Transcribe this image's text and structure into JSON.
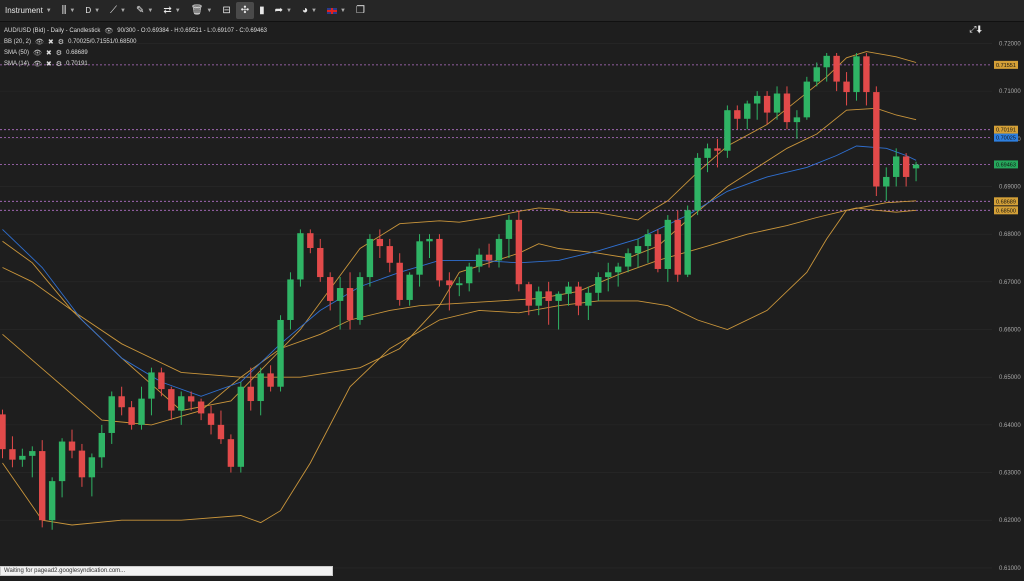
{
  "toolbar": {
    "instrument_label": "Instrument",
    "timeframe_label": "D"
  },
  "legend": {
    "main": "AUD/USD (Bid) - Daily - Candlestick",
    "main_values": "90/300 - O:0.69384 - H:0.69521 - L:0.69107 - C:0.69463",
    "bb_name": "BB (20, 2)",
    "bb_values": "0.70025/0.71551/0.68500",
    "sma50_name": "SMA (50)",
    "sma50_value": "0.68689",
    "sma14_name": "SMA (14)",
    "sma14_value": "0.70191"
  },
  "status_text": "Waiting for pagead2.googlesyndication.com...",
  "chart_data": {
    "type": "candlestick",
    "instrument": "AUD/USD",
    "timeframe": "Daily",
    "ylim": [
      0.6083,
      0.7245
    ],
    "yticks": [
      "0.72000",
      "0.71000",
      "0.70000",
      "0.69000",
      "0.68000",
      "0.67000",
      "0.66000",
      "0.65000",
      "0.64000",
      "0.63000",
      "0.62000",
      "0.61000"
    ],
    "price_labels": [
      {
        "text": "0.71551",
        "color": "#d4a037"
      },
      {
        "text": "0.70191",
        "color": "#d4a037"
      },
      {
        "text": "0.70025",
        "color": "#2d7fe0"
      },
      {
        "text": "0.69463",
        "color": "#26a85c"
      },
      {
        "text": "0.68689",
        "color": "#d4a037"
      },
      {
        "text": "0.68500",
        "color": "#d4a037"
      }
    ],
    "dashed_levels": [
      0.71551,
      0.70191,
      0.70025,
      0.69463,
      0.68689,
      0.685
    ],
    "candles": [
      [
        0.6422,
        0.6432,
        0.633,
        0.6349
      ],
      [
        0.6349,
        0.6376,
        0.6311,
        0.6327
      ],
      [
        0.6327,
        0.635,
        0.6312,
        0.6335
      ],
      [
        0.6335,
        0.6355,
        0.629,
        0.6345
      ],
      [
        0.6345,
        0.6368,
        0.6185,
        0.62
      ],
      [
        0.62,
        0.629,
        0.618,
        0.6282
      ],
      [
        0.6282,
        0.6372,
        0.6248,
        0.6365
      ],
      [
        0.6365,
        0.639,
        0.633,
        0.6346
      ],
      [
        0.6346,
        0.636,
        0.627,
        0.629
      ],
      [
        0.629,
        0.634,
        0.625,
        0.6332
      ],
      [
        0.6332,
        0.64,
        0.631,
        0.6383
      ],
      [
        0.6383,
        0.647,
        0.636,
        0.646
      ],
      [
        0.646,
        0.648,
        0.642,
        0.6437
      ],
      [
        0.6437,
        0.645,
        0.639,
        0.64
      ],
      [
        0.64,
        0.648,
        0.639,
        0.6455
      ],
      [
        0.6455,
        0.652,
        0.642,
        0.651
      ],
      [
        0.651,
        0.652,
        0.646,
        0.6475
      ],
      [
        0.6475,
        0.648,
        0.641,
        0.643
      ],
      [
        0.643,
        0.647,
        0.64,
        0.646
      ],
      [
        0.646,
        0.647,
        0.643,
        0.6449
      ],
      [
        0.6449,
        0.6455,
        0.641,
        0.6424
      ],
      [
        0.6424,
        0.644,
        0.638,
        0.64
      ],
      [
        0.64,
        0.643,
        0.636,
        0.637
      ],
      [
        0.637,
        0.638,
        0.63,
        0.6312
      ],
      [
        0.6312,
        0.649,
        0.63,
        0.648
      ],
      [
        0.648,
        0.652,
        0.643,
        0.645
      ],
      [
        0.645,
        0.652,
        0.642,
        0.6508
      ],
      [
        0.6508,
        0.6525,
        0.647,
        0.648
      ],
      [
        0.648,
        0.663,
        0.647,
        0.662
      ],
      [
        0.662,
        0.672,
        0.66,
        0.6705
      ],
      [
        0.6705,
        0.681,
        0.669,
        0.6802
      ],
      [
        0.6802,
        0.681,
        0.676,
        0.6771
      ],
      [
        0.6771,
        0.679,
        0.67,
        0.671
      ],
      [
        0.671,
        0.672,
        0.664,
        0.666
      ],
      [
        0.666,
        0.671,
        0.66,
        0.6687
      ],
      [
        0.6687,
        0.672,
        0.66,
        0.662
      ],
      [
        0.662,
        0.672,
        0.661,
        0.671
      ],
      [
        0.671,
        0.68,
        0.669,
        0.679
      ],
      [
        0.679,
        0.681,
        0.675,
        0.6775
      ],
      [
        0.6775,
        0.679,
        0.672,
        0.674
      ],
      [
        0.674,
        0.676,
        0.665,
        0.6662
      ],
      [
        0.6662,
        0.672,
        0.665,
        0.6715
      ],
      [
        0.6715,
        0.68,
        0.669,
        0.6785
      ],
      [
        0.6785,
        0.68,
        0.675,
        0.679
      ],
      [
        0.679,
        0.68,
        0.669,
        0.6703
      ],
      [
        0.6703,
        0.672,
        0.664,
        0.6693
      ],
      [
        0.6693,
        0.671,
        0.667,
        0.6697
      ],
      [
        0.6697,
        0.674,
        0.668,
        0.6732
      ],
      [
        0.6732,
        0.677,
        0.672,
        0.6757
      ],
      [
        0.6757,
        0.678,
        0.673,
        0.6745
      ],
      [
        0.6745,
        0.68,
        0.673,
        0.679
      ],
      [
        0.679,
        0.684,
        0.675,
        0.683
      ],
      [
        0.683,
        0.685,
        0.668,
        0.6695
      ],
      [
        0.6695,
        0.67,
        0.663,
        0.665
      ],
      [
        0.665,
        0.669,
        0.663,
        0.668
      ],
      [
        0.668,
        0.67,
        0.661,
        0.666
      ],
      [
        0.666,
        0.668,
        0.66,
        0.6675
      ],
      [
        0.6675,
        0.67,
        0.665,
        0.669
      ],
      [
        0.669,
        0.67,
        0.663,
        0.665
      ],
      [
        0.665,
        0.669,
        0.662,
        0.6677
      ],
      [
        0.6677,
        0.672,
        0.666,
        0.671
      ],
      [
        0.671,
        0.674,
        0.668,
        0.672
      ],
      [
        0.672,
        0.674,
        0.669,
        0.6732
      ],
      [
        0.6732,
        0.677,
        0.672,
        0.676
      ],
      [
        0.676,
        0.679,
        0.673,
        0.6775
      ],
      [
        0.6775,
        0.681,
        0.674,
        0.68
      ],
      [
        0.68,
        0.681,
        0.672,
        0.6727
      ],
      [
        0.6727,
        0.684,
        0.67,
        0.683
      ],
      [
        0.683,
        0.685,
        0.67,
        0.6715
      ],
      [
        0.6715,
        0.686,
        0.671,
        0.685
      ],
      [
        0.685,
        0.697,
        0.684,
        0.696
      ],
      [
        0.696,
        0.699,
        0.693,
        0.698
      ],
      [
        0.698,
        0.7,
        0.694,
        0.6975
      ],
      [
        0.6975,
        0.707,
        0.696,
        0.706
      ],
      [
        0.706,
        0.707,
        0.702,
        0.7042
      ],
      [
        0.7042,
        0.708,
        0.702,
        0.7074
      ],
      [
        0.7074,
        0.71,
        0.704,
        0.709
      ],
      [
        0.709,
        0.71,
        0.703,
        0.7055
      ],
      [
        0.7055,
        0.711,
        0.704,
        0.7095
      ],
      [
        0.7095,
        0.711,
        0.702,
        0.7035
      ],
      [
        0.7035,
        0.706,
        0.7,
        0.7045
      ],
      [
        0.7045,
        0.713,
        0.704,
        0.712
      ],
      [
        0.712,
        0.716,
        0.711,
        0.715
      ],
      [
        0.715,
        0.718,
        0.712,
        0.7174
      ],
      [
        0.7174,
        0.718,
        0.71,
        0.712
      ],
      [
        0.712,
        0.714,
        0.707,
        0.7098
      ],
      [
        0.7098,
        0.718,
        0.708,
        0.7173
      ],
      [
        0.7173,
        0.718,
        0.707,
        0.7098
      ],
      [
        0.7098,
        0.711,
        0.688,
        0.69
      ],
      [
        0.69,
        0.694,
        0.687,
        0.692
      ],
      [
        0.692,
        0.698,
        0.69,
        0.6963
      ],
      [
        0.6963,
        0.697,
        0.69,
        0.692
      ],
      [
        0.6938,
        0.6952,
        0.6911,
        0.6946
      ]
    ],
    "bb_upper": [
      [
        0,
        0.6785
      ],
      [
        0.08,
        0.674
      ],
      [
        0.18,
        0.664
      ],
      [
        0.3,
        0.654
      ],
      [
        0.45,
        0.643
      ],
      [
        0.58,
        0.645
      ],
      [
        0.75,
        0.66
      ],
      [
        0.9,
        0.677
      ],
      [
        1.0,
        0.6822
      ],
      [
        1.08,
        0.6828
      ],
      [
        1.15,
        0.6825
      ],
      [
        1.22,
        0.6835
      ],
      [
        1.28,
        0.6848
      ],
      [
        1.34,
        0.6855
      ],
      [
        1.38,
        0.6852
      ],
      [
        1.42,
        0.6846
      ],
      [
        1.5,
        0.6845
      ],
      [
        1.58,
        0.683
      ],
      [
        1.62,
        0.6845
      ],
      [
        1.66,
        0.687
      ],
      [
        1.74,
        0.693
      ],
      [
        1.82,
        0.6985
      ],
      [
        1.9,
        0.703
      ],
      [
        1.98,
        0.708
      ],
      [
        2.06,
        0.713
      ],
      [
        2.12,
        0.717
      ],
      [
        2.17,
        0.7183
      ],
      [
        2.23,
        0.7172
      ],
      [
        2.28,
        0.716
      ]
    ],
    "bb_mid": [
      [
        0,
        0.673
      ],
      [
        0.08,
        0.67
      ],
      [
        0.18,
        0.664
      ],
      [
        0.3,
        0.657
      ],
      [
        0.45,
        0.651
      ],
      [
        0.6,
        0.65
      ],
      [
        0.75,
        0.65
      ],
      [
        0.9,
        0.652
      ],
      [
        1.0,
        0.656
      ],
      [
        1.08,
        0.665
      ],
      [
        1.15,
        0.672
      ],
      [
        1.22,
        0.674
      ],
      [
        1.28,
        0.676
      ],
      [
        1.34,
        0.678
      ],
      [
        1.4,
        0.677
      ],
      [
        1.48,
        0.676
      ],
      [
        1.56,
        0.675
      ],
      [
        1.64,
        0.6775
      ],
      [
        1.72,
        0.683
      ],
      [
        1.8,
        0.69
      ],
      [
        1.88,
        0.694
      ],
      [
        1.96,
        0.698
      ],
      [
        2.04,
        0.701
      ],
      [
        2.12,
        0.706
      ],
      [
        2.18,
        0.7064
      ],
      [
        2.24,
        0.705
      ],
      [
        2.28,
        0.704
      ]
    ],
    "bb_lower": [
      [
        0,
        0.632
      ],
      [
        0.05,
        0.626
      ],
      [
        0.1,
        0.62
      ],
      [
        0.18,
        0.619
      ],
      [
        0.3,
        0.62
      ],
      [
        0.45,
        0.62
      ],
      [
        0.6,
        0.621
      ],
      [
        0.65,
        0.6195
      ],
      [
        0.7,
        0.622
      ],
      [
        0.78,
        0.632
      ],
      [
        0.88,
        0.648
      ],
      [
        0.98,
        0.656
      ],
      [
        1.08,
        0.662
      ],
      [
        1.18,
        0.664
      ],
      [
        1.28,
        0.6635
      ],
      [
        1.4,
        0.665
      ],
      [
        1.5,
        0.666
      ],
      [
        1.58,
        0.666
      ],
      [
        1.66,
        0.665
      ],
      [
        1.74,
        0.662
      ],
      [
        1.82,
        0.66
      ],
      [
        1.9,
        0.664
      ],
      [
        2.0,
        0.672
      ],
      [
        2.05,
        0.679
      ],
      [
        2.1,
        0.685
      ],
      [
        2.14,
        0.6855
      ],
      [
        2.18,
        0.685
      ],
      [
        2.24,
        0.6846
      ],
      [
        2.28,
        0.685
      ]
    ],
    "sma50": [
      [
        0,
        0.659
      ],
      [
        0.12,
        0.65
      ],
      [
        0.25,
        0.641
      ],
      [
        0.38,
        0.64
      ],
      [
        0.5,
        0.643
      ],
      [
        0.6,
        0.65
      ],
      [
        0.7,
        0.656
      ],
      [
        0.8,
        0.659
      ],
      [
        0.88,
        0.662
      ],
      [
        0.96,
        0.664
      ],
      [
        1.05,
        0.665
      ],
      [
        1.15,
        0.6655
      ],
      [
        1.25,
        0.666
      ],
      [
        1.35,
        0.6665
      ],
      [
        1.45,
        0.668
      ],
      [
        1.55,
        0.6715
      ],
      [
        1.65,
        0.6745
      ],
      [
        1.75,
        0.6775
      ],
      [
        1.85,
        0.68
      ],
      [
        1.95,
        0.6818
      ],
      [
        2.04,
        0.6835
      ],
      [
        2.1,
        0.685
      ],
      [
        2.16,
        0.6858
      ],
      [
        2.22,
        0.6866
      ],
      [
        2.28,
        0.687
      ]
    ],
    "sma14": [
      [
        0,
        0.681
      ],
      [
        0.1,
        0.673
      ],
      [
        0.2,
        0.662
      ],
      [
        0.3,
        0.654
      ],
      [
        0.4,
        0.649
      ],
      [
        0.5,
        0.646
      ],
      [
        0.6,
        0.649
      ],
      [
        0.7,
        0.657
      ],
      [
        0.8,
        0.664
      ],
      [
        0.9,
        0.669
      ],
      [
        1.0,
        0.672
      ],
      [
        1.1,
        0.6745
      ],
      [
        1.2,
        0.6745
      ],
      [
        1.3,
        0.674
      ],
      [
        1.4,
        0.6745
      ],
      [
        1.5,
        0.6765
      ],
      [
        1.6,
        0.679
      ],
      [
        1.7,
        0.684
      ],
      [
        1.8,
        0.689
      ],
      [
        1.9,
        0.692
      ],
      [
        2.0,
        0.694
      ],
      [
        2.08,
        0.6965
      ],
      [
        2.14,
        0.6985
      ],
      [
        2.2,
        0.698
      ],
      [
        2.25,
        0.6965
      ],
      [
        2.28,
        0.6955
      ]
    ]
  }
}
